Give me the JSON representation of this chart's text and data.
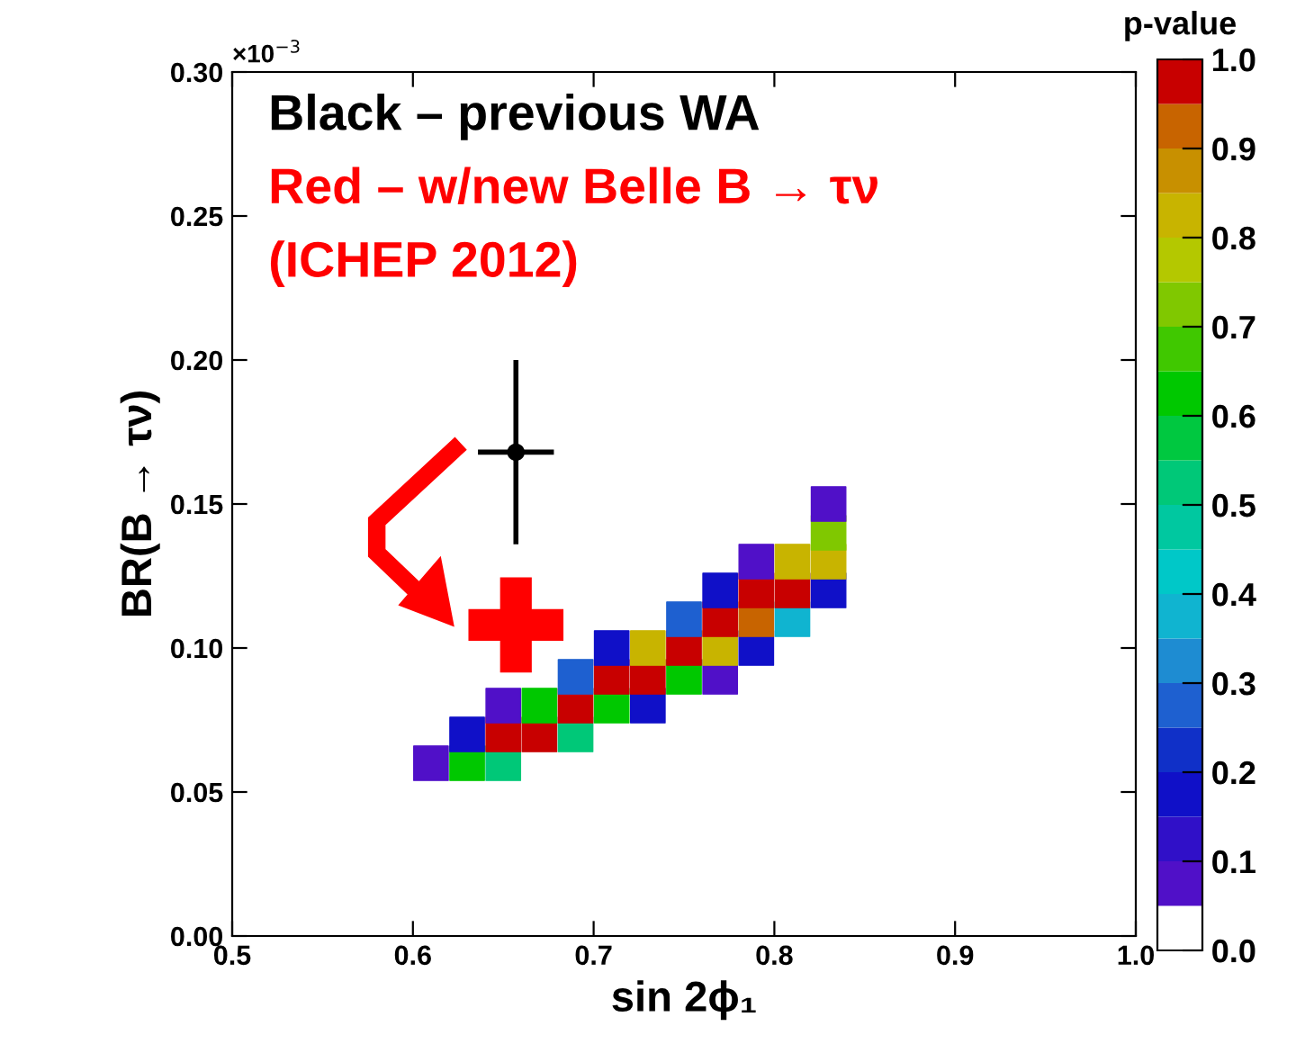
{
  "chart_data": {
    "type": "scatter",
    "xlabel": "sin 2ϕ₁",
    "ylabel": "BR(B → τν)",
    "clabel": "p-value",
    "xlim": [
      0.5,
      1.0
    ],
    "xticks": [
      0.5,
      0.6,
      0.7,
      0.8,
      0.9,
      {
        "value": 1.0,
        "label": "1.0"
      }
    ],
    "ylim": [
      0,
      0.3
    ],
    "yticks": [
      {
        "value": 0,
        "label": "0.00"
      },
      0.05,
      {
        "value": 0.1,
        "label": "0.10"
      },
      0.15,
      {
        "value": 0.2,
        "label": "0.20"
      },
      0.25,
      {
        "value": 0.3,
        "label": "0.30"
      }
    ],
    "clim": [
      0,
      1
    ],
    "cticks": [
      {
        "value": 0,
        "label": "0.0"
      },
      0.1,
      0.2,
      0.3,
      0.4,
      0.5,
      0.6,
      0.7,
      0.8,
      0.9,
      {
        "value": 1.0,
        "label": "1.0"
      }
    ],
    "grid": false,
    "legend": false,
    "annotations": [
      "×10$^{−3}$",
      "Black – previous WA",
      "Red – w/new Belle B → τν",
      "(ICHEP 2012)"
    ],
    "series": [
      {
        "marker": "square",
        "x": [
          0.61,
          0.63,
          0.63,
          0.65,
          0.65,
          0.65,
          0.67,
          0.67,
          0.69,
          0.69,
          0.69,
          0.71,
          0.71,
          0.71,
          0.73,
          0.73,
          0.73,
          0.75,
          0.75,
          0.75,
          0.77,
          0.77,
          0.77,
          0.77,
          0.79,
          0.79,
          0.79,
          0.79,
          0.81,
          0.81,
          0.81,
          0.83,
          0.83,
          0.83,
          0.83
        ],
        "values": [
          0.06,
          0.06,
          0.07,
          0.06,
          0.07,
          0.08,
          0.07,
          0.08,
          0.07,
          0.08,
          0.09,
          0.08,
          0.09,
          0.1,
          0.08,
          0.09,
          0.1,
          0.09,
          0.1,
          0.11,
          0.09,
          0.1,
          0.11,
          0.12,
          0.1,
          0.11,
          0.12,
          0.13,
          0.11,
          0.12,
          0.13,
          0.12,
          0.13,
          0.14,
          0.15
        ],
        "cvalues": [
          0.08,
          0.62,
          0.18,
          0.52,
          0.97,
          0.08,
          0.99,
          0.62,
          0.52,
          0.99,
          0.28,
          0.62,
          0.99,
          0.18,
          0.18,
          0.97,
          0.82,
          0.62,
          0.99,
          0.28,
          0.08,
          0.82,
          0.99,
          0.18,
          0.18,
          0.92,
          0.97,
          0.08,
          0.38,
          0.99,
          0.82,
          0.18,
          0.82,
          0.72,
          0.08
        ],
        "colors": [
          "#5010c8",
          "#00c800",
          "#1010c8",
          "#00c878",
          "#c80000",
          "#5010c8",
          "#c80000",
          "#00c800",
          "#00c878",
          "#c80000",
          "#1e60d0",
          "#00c800",
          "#c80000",
          "#1010c8",
          "#1010c8",
          "#c80000",
          "#c8b400",
          "#00c800",
          "#c80000",
          "#1e60d0",
          "#5010c8",
          "#c8b400",
          "#c80000",
          "#1010c8",
          "#1010c8",
          "#c86400",
          "#c80000",
          "#5010c8",
          "#10b4d0",
          "#c80000",
          "#c8b400",
          "#1010c8",
          "#c8b400",
          "#80c800",
          "#5010c8"
        ]
      },
      {
        "marker": "circle",
        "color": "#000000",
        "x": [
          0.657
        ],
        "values": [
          0.168
        ],
        "errors": [
          0.032
        ],
        "xerrors": [
          0.021
        ]
      },
      {
        "marker": "cross",
        "color": "#ff0000",
        "x": [
          0.657
        ],
        "values": [
          0.108
        ]
      }
    ]
  }
}
